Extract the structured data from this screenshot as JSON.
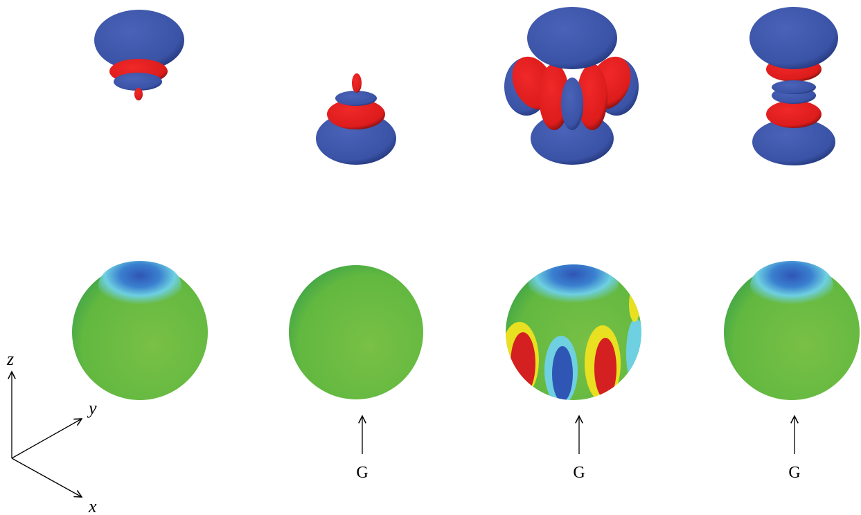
{
  "axes": {
    "z": "z",
    "y": "y",
    "x": "x"
  },
  "markers": [
    {
      "label": "G"
    },
    {
      "label": "G"
    },
    {
      "label": "G"
    }
  ]
}
